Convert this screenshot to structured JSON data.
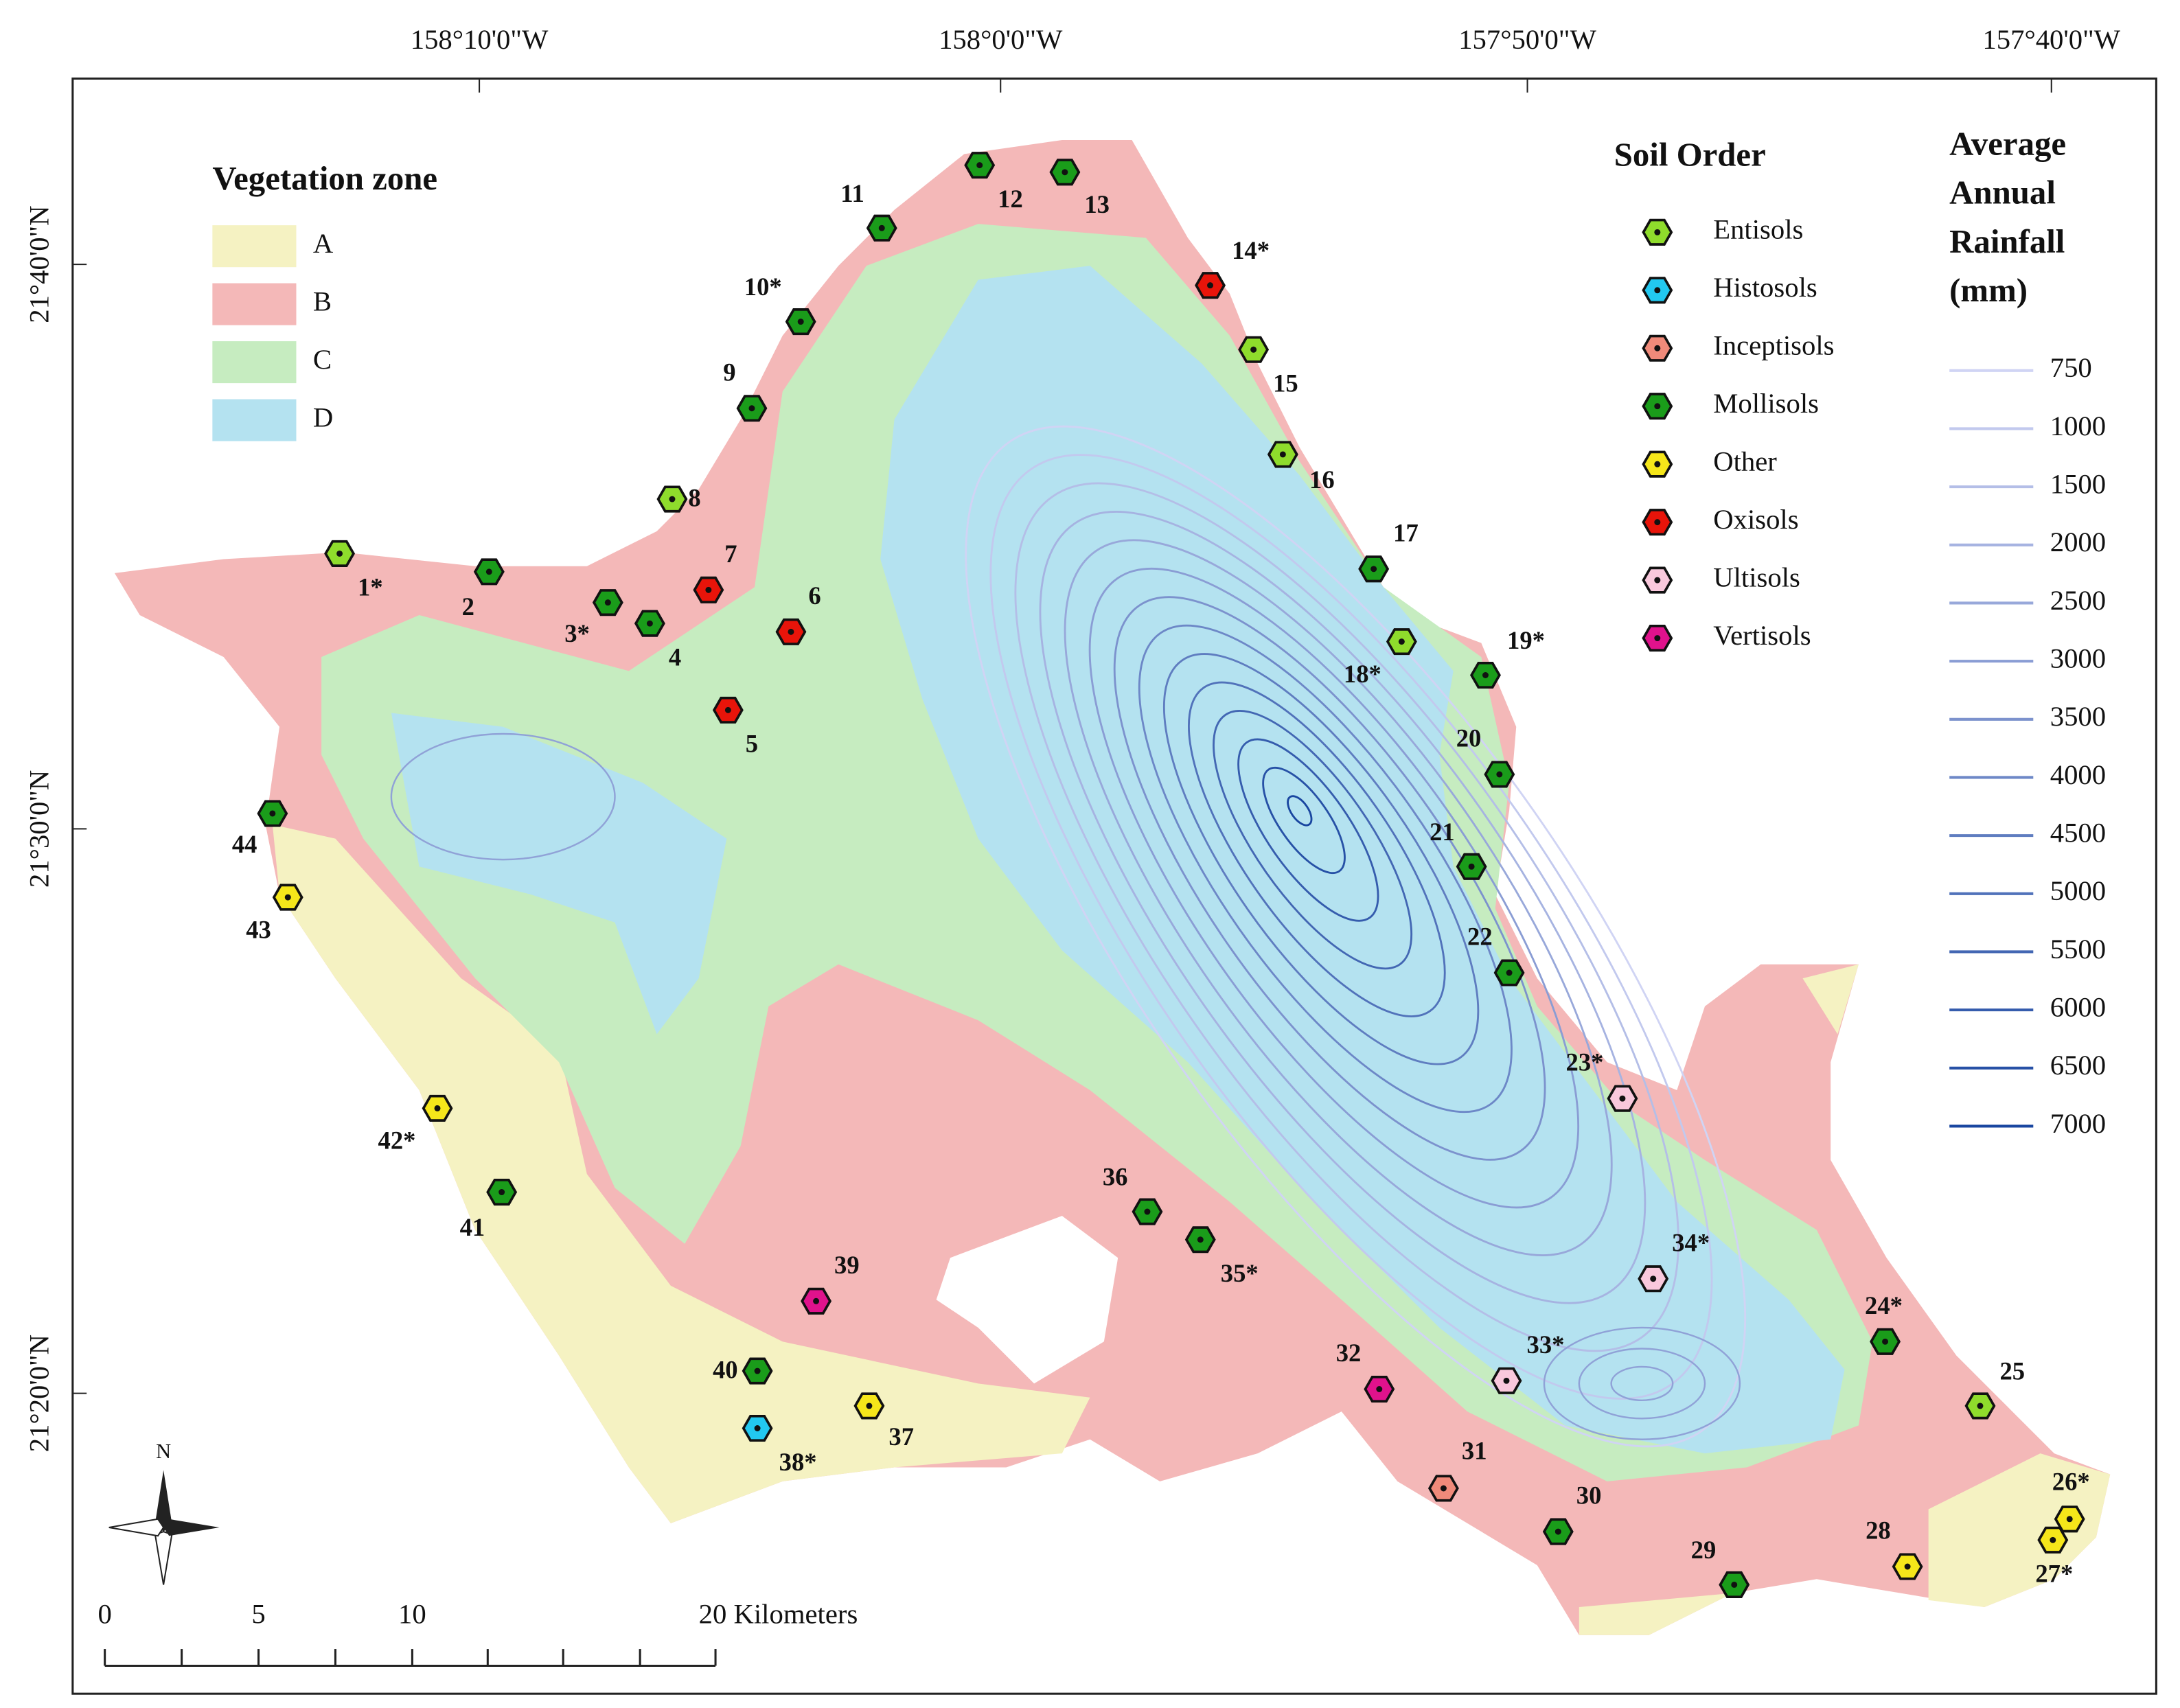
{
  "map": {
    "lon_labels": [
      "158°10'0\"W",
      "158°0'0\"W",
      "157°50'0\"W",
      "157°40'0\"W"
    ],
    "lat_labels": [
      "21°40'0\"N",
      "21°30'0\"N",
      "21°20'0\"N"
    ],
    "vegetation_legend": {
      "title": "Vegetation zone",
      "zones": [
        {
          "label": "A",
          "color": "#f5f2c2"
        },
        {
          "label": "B",
          "color": "#f4b8b8"
        },
        {
          "label": "C",
          "color": "#c6ecc0"
        },
        {
          "label": "D",
          "color": "#b4e2f0"
        }
      ]
    },
    "soil_legend": {
      "title": "Soil Order",
      "orders": [
        {
          "name": "Entisols",
          "color": "#8fdc2c"
        },
        {
          "name": "Histosols",
          "color": "#22c8f0"
        },
        {
          "name": "Inceptisols",
          "color": "#f08a7a"
        },
        {
          "name": "Mollisols",
          "color": "#1a9c1a"
        },
        {
          "name": "Other",
          "color": "#f5e61a"
        },
        {
          "name": "Oxisols",
          "color": "#e8140a"
        },
        {
          "name": "Ultisols",
          "color": "#f9c8dc"
        },
        {
          "name": "Vertisols",
          "color": "#e0128c"
        }
      ]
    },
    "rainfall_legend": {
      "title_lines": [
        "Average",
        "Annual",
        "Rainfall",
        "(mm)"
      ],
      "values": [
        750,
        1000,
        1500,
        2000,
        2500,
        3000,
        3500,
        4000,
        4500,
        5000,
        5500,
        6000,
        6500,
        7000
      ]
    },
    "sites": [
      {
        "label": "1*",
        "soil": "Entisols"
      },
      {
        "label": "2",
        "soil": "Mollisols"
      },
      {
        "label": "3*",
        "soil": "Mollisols"
      },
      {
        "label": "4",
        "soil": "Mollisols"
      },
      {
        "label": "5",
        "soil": "Oxisols"
      },
      {
        "label": "6",
        "soil": "Oxisols"
      },
      {
        "label": "7",
        "soil": "Oxisols"
      },
      {
        "label": "8",
        "soil": "Entisols"
      },
      {
        "label": "9",
        "soil": "Mollisols"
      },
      {
        "label": "10*",
        "soil": "Mollisols"
      },
      {
        "label": "11",
        "soil": "Mollisols"
      },
      {
        "label": "12",
        "soil": "Mollisols"
      },
      {
        "label": "13",
        "soil": "Mollisols"
      },
      {
        "label": "14*",
        "soil": "Oxisols"
      },
      {
        "label": "15",
        "soil": "Entisols"
      },
      {
        "label": "16",
        "soil": "Entisols"
      },
      {
        "label": "17",
        "soil": "Mollisols"
      },
      {
        "label": "18*",
        "soil": "Entisols"
      },
      {
        "label": "19*",
        "soil": "Mollisols"
      },
      {
        "label": "20",
        "soil": "Mollisols"
      },
      {
        "label": "21",
        "soil": "Mollisols"
      },
      {
        "label": "22",
        "soil": "Mollisols"
      },
      {
        "label": "23*",
        "soil": "Ultisols"
      },
      {
        "label": "24*",
        "soil": "Mollisols"
      },
      {
        "label": "25",
        "soil": "Entisols"
      },
      {
        "label": "26*",
        "soil": "Other"
      },
      {
        "label": "27*",
        "soil": "Other"
      },
      {
        "label": "28",
        "soil": "Other"
      },
      {
        "label": "29",
        "soil": "Mollisols"
      },
      {
        "label": "30",
        "soil": "Mollisols"
      },
      {
        "label": "31",
        "soil": "Inceptisols"
      },
      {
        "label": "32",
        "soil": "Vertisols"
      },
      {
        "label": "33*",
        "soil": "Ultisols"
      },
      {
        "label": "34*",
        "soil": "Ultisols"
      },
      {
        "label": "35*",
        "soil": "Mollisols"
      },
      {
        "label": "36",
        "soil": "Mollisols"
      },
      {
        "label": "37",
        "soil": "Other"
      },
      {
        "label": "38*",
        "soil": "Histosols"
      },
      {
        "label": "39",
        "soil": "Vertisols"
      },
      {
        "label": "40",
        "soil": "Mollisols"
      },
      {
        "label": "41",
        "soil": "Mollisols"
      },
      {
        "label": "42*",
        "soil": "Other"
      },
      {
        "label": "43",
        "soil": "Other"
      },
      {
        "label": "44",
        "soil": "Mollisols"
      }
    ],
    "scale_bar": {
      "labels": [
        "0",
        "5",
        "10",
        "20 Kilometers"
      ]
    },
    "north": "N"
  }
}
